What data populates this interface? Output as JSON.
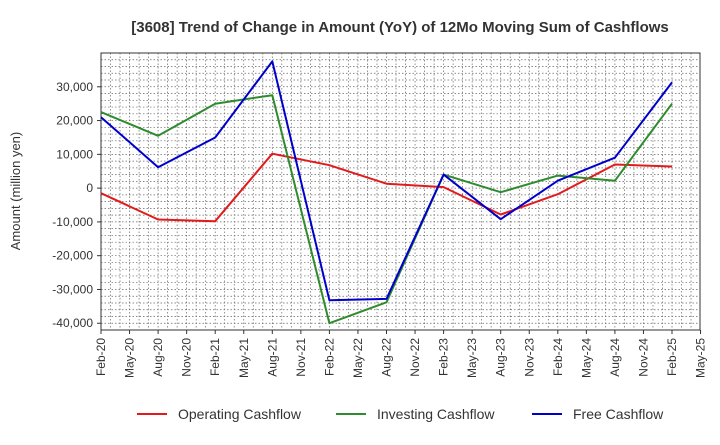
{
  "chart_data": {
    "type": "line",
    "title": "[3608]  Trend of Change in Amount (YoY) of 12Mo Moving Sum of Cashflows",
    "xlabel": "",
    "ylabel": "Amount (million yen)",
    "ylim": [
      -42000,
      40000
    ],
    "yticks": [
      -40000,
      -30000,
      -20000,
      -10000,
      0,
      10000,
      20000,
      30000
    ],
    "ytick_labels": [
      "-40,000",
      "-30,000",
      "-20,000",
      "-10,000",
      "0",
      "10,000",
      "20,000",
      "30,000"
    ],
    "xtick_labels": [
      "Feb-20",
      "May-20",
      "Aug-20",
      "Nov-20",
      "Feb-21",
      "May-21",
      "Aug-21",
      "Nov-21",
      "Feb-22",
      "May-22",
      "Aug-22",
      "Nov-22",
      "Feb-23",
      "May-23",
      "Aug-23",
      "Nov-23",
      "Feb-24",
      "May-24",
      "Aug-24",
      "Nov-24",
      "Feb-25",
      "May-25"
    ],
    "grid": true,
    "legend_position": "bottom",
    "series": [
      {
        "name": "Operating Cashflow",
        "color": "#e31a1c",
        "points": [
          {
            "x": "Feb-20",
            "y": -1500
          },
          {
            "x": "Aug-20",
            "y": -9300
          },
          {
            "x": "Feb-21",
            "y": -9800
          },
          {
            "x": "Aug-21",
            "y": 10200
          },
          {
            "x": "Feb-22",
            "y": 6800
          },
          {
            "x": "Aug-22",
            "y": 1300
          },
          {
            "x": "Feb-23",
            "y": 300
          },
          {
            "x": "Aug-23",
            "y": -7800
          },
          {
            "x": "Feb-24",
            "y": -1800
          },
          {
            "x": "Aug-24",
            "y": 7000
          },
          {
            "x": "Feb-25",
            "y": 6400
          }
        ]
      },
      {
        "name": "Investing Cashflow",
        "color": "#2e8b2e",
        "points": [
          {
            "x": "Feb-20",
            "y": 22500
          },
          {
            "x": "Aug-20",
            "y": 15500
          },
          {
            "x": "Feb-21",
            "y": 25000
          },
          {
            "x": "Aug-21",
            "y": 27500
          },
          {
            "x": "Feb-22",
            "y": -40000
          },
          {
            "x": "Aug-22",
            "y": -33800
          },
          {
            "x": "Feb-23",
            "y": 4000
          },
          {
            "x": "Aug-23",
            "y": -1200
          },
          {
            "x": "Feb-24",
            "y": 3700
          },
          {
            "x": "Aug-24",
            "y": 2200
          },
          {
            "x": "Feb-25",
            "y": 25000
          }
        ]
      },
      {
        "name": "Free Cashflow",
        "color": "#0000cc",
        "points": [
          {
            "x": "Feb-20",
            "y": 21000
          },
          {
            "x": "Aug-20",
            "y": 6200
          },
          {
            "x": "Feb-21",
            "y": 15000
          },
          {
            "x": "Aug-21",
            "y": 37500
          },
          {
            "x": "Feb-22",
            "y": -33200
          },
          {
            "x": "Aug-22",
            "y": -32800
          },
          {
            "x": "Feb-23",
            "y": 4000
          },
          {
            "x": "Aug-23",
            "y": -9200
          },
          {
            "x": "Feb-24",
            "y": 2200
          },
          {
            "x": "Aug-24",
            "y": 9000
          },
          {
            "x": "Feb-25",
            "y": 31300
          }
        ]
      }
    ]
  }
}
